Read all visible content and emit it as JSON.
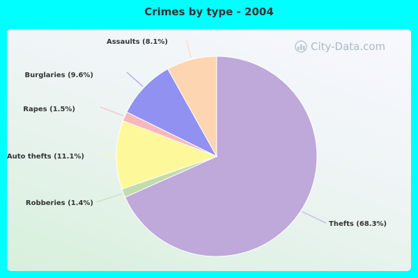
{
  "watermark": "City-Data.com",
  "chart_data": {
    "type": "pie",
    "title": "Crimes by type - 2004",
    "slices": [
      {
        "label": "Thefts (68.3%)",
        "value": 68.3,
        "color": "#bfa8da"
      },
      {
        "label": "Robberies (1.4%)",
        "value": 1.4,
        "color": "#c3dcae"
      },
      {
        "label": "Auto thefts (11.1%)",
        "value": 11.1,
        "color": "#fdf99a"
      },
      {
        "label": "Rapes (1.5%)",
        "value": 1.5,
        "color": "#f8b7bc"
      },
      {
        "label": "Burglaries (9.6%)",
        "value": 9.6,
        "color": "#9191f2"
      },
      {
        "label": "Assaults (8.1%)",
        "value": 8.1,
        "color": "#fed5b1"
      }
    ]
  }
}
